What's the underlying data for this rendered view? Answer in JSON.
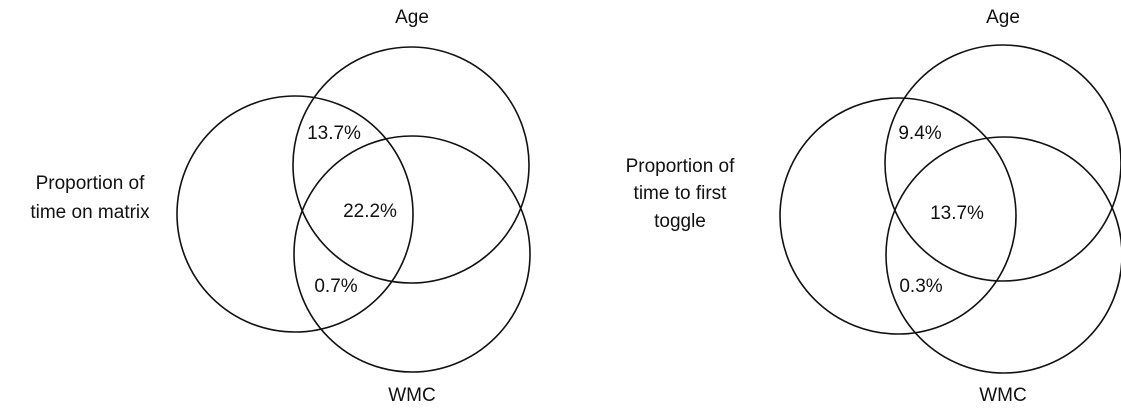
{
  "diagrams": [
    {
      "top_label": "Age",
      "bottom_label": "WMC",
      "side_label_lines": [
        "Proportion of",
        "time on matrix"
      ],
      "regions": {
        "side_and_top": "13.7%",
        "all_three": "22.2%",
        "side_and_bottom": "0.7%"
      }
    },
    {
      "top_label": "Age",
      "bottom_label": "WMC",
      "side_label_lines": [
        "Proportion of",
        "time to first",
        "toggle"
      ],
      "regions": {
        "side_and_top": "9.4%",
        "all_three": "13.7%",
        "side_and_bottom": "0.3%"
      }
    }
  ]
}
